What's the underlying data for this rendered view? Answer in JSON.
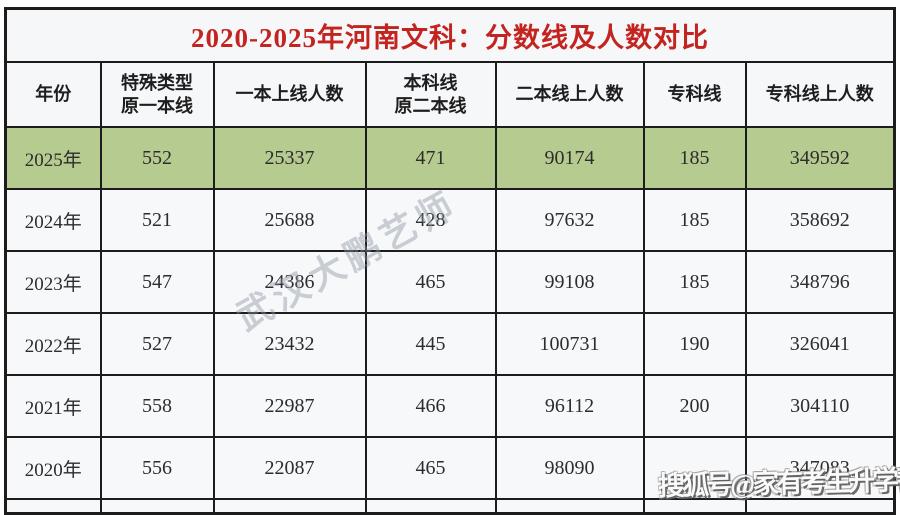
{
  "title": "2020-2025年河南文科：分数线及人数对比",
  "colors": {
    "title_red": "#c3241f",
    "highlight_green": "#b6cb8f",
    "border_dark": "#1c1c1c",
    "row_bg": "#f7f8fa",
    "header_bg": "#f6f7f9",
    "watermark_gray": "#8f96a3"
  },
  "chart_data": {
    "type": "table",
    "title": "2020-2025年河南文科：分数线及人数对比",
    "columns": [
      "年份",
      "特殊类型\n原一本线",
      "一本上线人数",
      "本科线\n原二本线",
      "二本线上人数",
      "专科线",
      "专科线上人数"
    ],
    "rows": [
      [
        "2025年",
        "552",
        "25337",
        "471",
        "90174",
        "185",
        "349592"
      ],
      [
        "2024年",
        "521",
        "25688",
        "428",
        "97632",
        "185",
        "358692"
      ],
      [
        "2023年",
        "547",
        "24386",
        "465",
        "99108",
        "185",
        "348796"
      ],
      [
        "2022年",
        "527",
        "23432",
        "445",
        "100731",
        "190",
        "326041"
      ],
      [
        "2021年",
        "558",
        "22987",
        "466",
        "96112",
        "200",
        "304110"
      ],
      [
        "2020年",
        "556",
        "22087",
        "465",
        "98090",
        "",
        "347083"
      ]
    ],
    "highlighted_row": "2025年"
  },
  "watermarks": {
    "diagonal": "武汉大鹏艺师",
    "bottom_right": "搜狐号@家有考生升学帮"
  }
}
